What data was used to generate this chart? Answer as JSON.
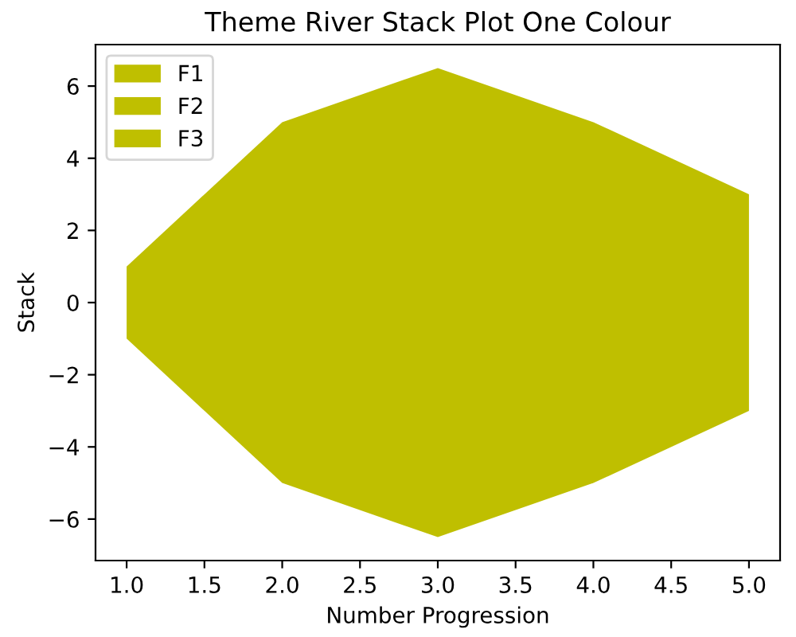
{
  "chart_data": {
    "type": "area",
    "title": "Theme River Stack Plot One Colour",
    "xlabel": "Number Progression",
    "ylabel": "Stack",
    "x": [
      1,
      2,
      3,
      4,
      5
    ],
    "series": [
      {
        "name": "F1",
        "color": "#bfbf00",
        "values": [
          1,
          5,
          6.5,
          5,
          3
        ]
      },
      {
        "name": "F2",
        "color": "#bfbf00",
        "values": [
          null,
          null,
          null,
          null,
          null
        ]
      },
      {
        "name": "F3",
        "color": "#bfbf00",
        "values": [
          -1,
          -5,
          -6.5,
          -5,
          -3
        ]
      }
    ],
    "xlim": [
      0.8,
      5.2
    ],
    "ylim": [
      -7.15,
      7.15
    ],
    "xticks": [
      {
        "value": 1,
        "label": "1.0"
      },
      {
        "value": 1.5,
        "label": "1.5"
      },
      {
        "value": 2,
        "label": "2.0"
      },
      {
        "value": 2.5,
        "label": "2.5"
      },
      {
        "value": 3,
        "label": "3.0"
      },
      {
        "value": 3.5,
        "label": "3.5"
      },
      {
        "value": 4,
        "label": "4.0"
      },
      {
        "value": 4.5,
        "label": "4.5"
      },
      {
        "value": 5,
        "label": "5.0"
      }
    ],
    "yticks": [
      {
        "value": -6,
        "label": "−6"
      },
      {
        "value": -4,
        "label": "−4"
      },
      {
        "value": -2,
        "label": "−2"
      },
      0,
      2,
      4,
      6
    ],
    "legend": "top left",
    "grid": false
  }
}
